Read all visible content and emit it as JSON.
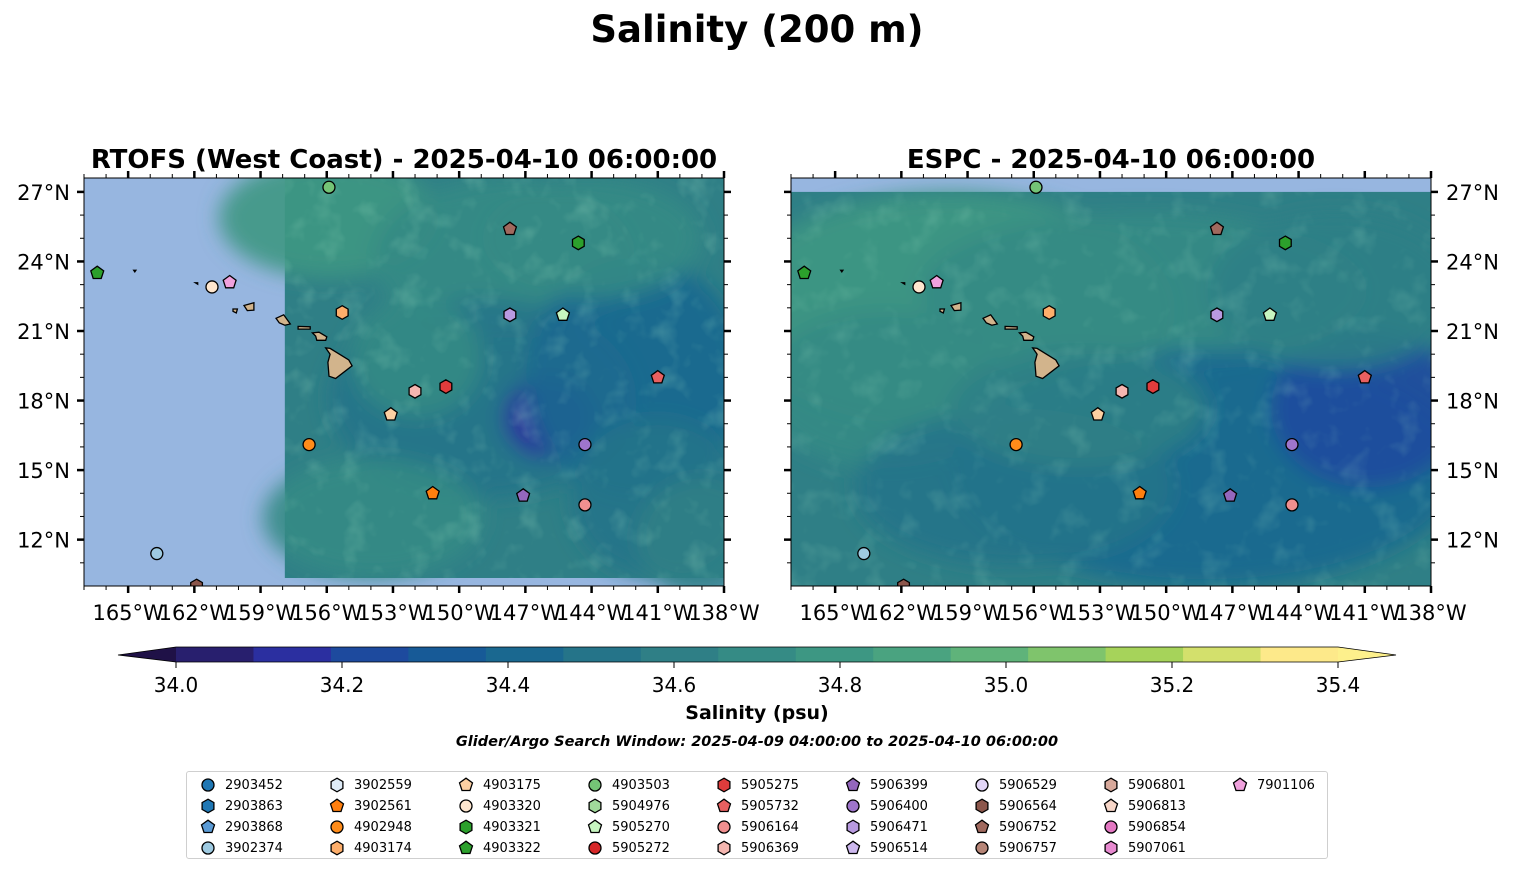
{
  "figure": {
    "title": "Salinity (200 m)",
    "search_window": "Glider/Argo Search Window: 2025-04-09 04:00:00 to 2025-04-10 06:00:00"
  },
  "chart_data": [
    {
      "type": "heatmap",
      "title": "RTOFS (West Coast) - 2025-04-10 06:00:00",
      "field": "Salinity (psu) at 200 m depth",
      "xlim": [
        -167,
        -138
      ],
      "ylim": [
        10,
        27.6
      ],
      "x_ticks": [
        "165°W",
        "162°W",
        "159°W",
        "156°W",
        "153°W",
        "150°W",
        "147°W",
        "144°W",
        "141°W",
        "138°W"
      ],
      "y_ticks": [
        "12°N",
        "15°N",
        "18°N",
        "21°N",
        "24°N",
        "27°N"
      ],
      "y_axis_side": "left",
      "model_domain_west_edge": -157.9,
      "land": "Hawaiian Islands (tan)",
      "no_data_color": "#97b6e0",
      "observations": [
        {
          "id": "3902374",
          "lon": -163.7,
          "lat": 11.4
        },
        {
          "id": "3902561",
          "lon": -151.2,
          "lat": 14.0
        },
        {
          "id": "4902948",
          "lon": -156.8,
          "lat": 16.1
        },
        {
          "id": "4903174",
          "lon": -155.3,
          "lat": 21.8
        },
        {
          "id": "4903175",
          "lon": -153.1,
          "lat": 17.4
        },
        {
          "id": "4903320",
          "lon": -161.2,
          "lat": 22.9
        },
        {
          "id": "4903321",
          "lon": -144.6,
          "lat": 24.8
        },
        {
          "id": "4903322",
          "lon": -166.4,
          "lat": 23.5
        },
        {
          "id": "4903503",
          "lon": -155.9,
          "lat": 27.2
        },
        {
          "id": "5905270",
          "lon": -145.3,
          "lat": 21.7
        },
        {
          "id": "5905275",
          "lon": -150.6,
          "lat": 18.6
        },
        {
          "id": "5905732",
          "lon": -141.0,
          "lat": 19.0
        },
        {
          "id": "5906164",
          "lon": -144.3,
          "lat": 13.5
        },
        {
          "id": "5906369",
          "lon": -152.0,
          "lat": 18.4
        },
        {
          "id": "5906399",
          "lon": -147.1,
          "lat": 13.9
        },
        {
          "id": "5906400",
          "lon": -144.3,
          "lat": 16.1
        },
        {
          "id": "5906471",
          "lon": -147.7,
          "lat": 21.7
        },
        {
          "id": "5906564",
          "lon": -161.9,
          "lat": 10.0
        },
        {
          "id": "5906752",
          "lon": -147.7,
          "lat": 25.4
        },
        {
          "id": "7901106",
          "lon": -160.4,
          "lat": 23.1
        }
      ]
    },
    {
      "type": "heatmap",
      "title": "ESPC - 2025-04-10 06:00:00",
      "field": "Salinity (psu) at 200 m depth",
      "xlim": [
        -167,
        -138
      ],
      "ylim": [
        10,
        27.6
      ],
      "x_ticks": [
        "165°W",
        "162°W",
        "159°W",
        "156°W",
        "153°W",
        "150°W",
        "147°W",
        "144°W",
        "141°W",
        "138°W"
      ],
      "y_ticks": [
        "12°N",
        "15°N",
        "18°N",
        "21°N",
        "24°N",
        "27°N"
      ],
      "y_axis_side": "right",
      "model_domain_north_edge": 27.0,
      "land": "Hawaiian Islands (tan)",
      "no_data_color": "#97b6e0"
    }
  ],
  "colorbar": {
    "label": "Salinity (psu)",
    "min": 34.0,
    "max": 35.4,
    "step": 0.1,
    "extend": "both",
    "tick_labels": [
      "34.0",
      "34.2",
      "34.4",
      "34.6",
      "34.8",
      "35.0",
      "35.2",
      "35.4"
    ],
    "colors": [
      "#281f6e",
      "#2b2fa0",
      "#1d4a9e",
      "#175a97",
      "#1a6890",
      "#257489",
      "#2f7f86",
      "#358b85",
      "#3d9783",
      "#4aa380",
      "#5fb37a",
      "#7fc46c",
      "#a6d35a",
      "#d3e06c",
      "#fde98a"
    ],
    "under_color": "#1f1147",
    "over_color": "#fdf08c"
  },
  "legend": {
    "items": [
      {
        "label": "2903452",
        "marker": "circle",
        "color": "#1f77b4"
      },
      {
        "label": "2903863",
        "marker": "hexagon",
        "color": "#1f77b4"
      },
      {
        "label": "2903868",
        "marker": "pentagon",
        "color": "#5b9bd5"
      },
      {
        "label": "3902374",
        "marker": "circle",
        "color": "#9ecae1"
      },
      {
        "label": "3902559",
        "marker": "hexagon",
        "color": "#deebf7"
      },
      {
        "label": "3902561",
        "marker": "pentagon",
        "color": "#ff7f0e"
      },
      {
        "label": "4902948",
        "marker": "circle",
        "color": "#ff8c1a"
      },
      {
        "label": "4903174",
        "marker": "hexagon",
        "color": "#fdae6b"
      },
      {
        "label": "4903175",
        "marker": "pentagon",
        "color": "#fdd0a2"
      },
      {
        "label": "4903320",
        "marker": "circle",
        "color": "#fee6ce"
      },
      {
        "label": "4903321",
        "marker": "hexagon",
        "color": "#2ca02c"
      },
      {
        "label": "4903322",
        "marker": "pentagon",
        "color": "#2ca02c"
      },
      {
        "label": "4903503",
        "marker": "circle",
        "color": "#74c476"
      },
      {
        "label": "5904976",
        "marker": "hexagon",
        "color": "#a1d99b"
      },
      {
        "label": "5905270",
        "marker": "pentagon",
        "color": "#c7f5c0"
      },
      {
        "label": "5905272",
        "marker": "circle",
        "color": "#d62728"
      },
      {
        "label": "5905275",
        "marker": "hexagon",
        "color": "#e03c3c"
      },
      {
        "label": "5905732",
        "marker": "pentagon",
        "color": "#e86060"
      },
      {
        "label": "5906164",
        "marker": "circle",
        "color": "#f08f8f"
      },
      {
        "label": "5906369",
        "marker": "hexagon",
        "color": "#f4b6b0"
      },
      {
        "label": "5906399",
        "marker": "pentagon",
        "color": "#9467bd"
      },
      {
        "label": "5906400",
        "marker": "circle",
        "color": "#9f75cc"
      },
      {
        "label": "5906471",
        "marker": "hexagon",
        "color": "#b89ae0"
      },
      {
        "label": "5906514",
        "marker": "pentagon",
        "color": "#cdb8ee"
      },
      {
        "label": "5906529",
        "marker": "circle",
        "color": "#e2d5f7"
      },
      {
        "label": "5906564",
        "marker": "hexagon",
        "color": "#8c564b"
      },
      {
        "label": "5906752",
        "marker": "pentagon",
        "color": "#a0695e"
      },
      {
        "label": "5906757",
        "marker": "circle",
        "color": "#b68577"
      },
      {
        "label": "5906801",
        "marker": "hexagon",
        "color": "#d8a99b"
      },
      {
        "label": "5906813",
        "marker": "pentagon",
        "color": "#f7d6c8"
      },
      {
        "label": "5906854",
        "marker": "circle",
        "color": "#e377c2"
      },
      {
        "label": "5907061",
        "marker": "hexagon",
        "color": "#e78ad0"
      },
      {
        "label": "7901106",
        "marker": "pentagon",
        "color": "#f0a1dd"
      }
    ]
  }
}
